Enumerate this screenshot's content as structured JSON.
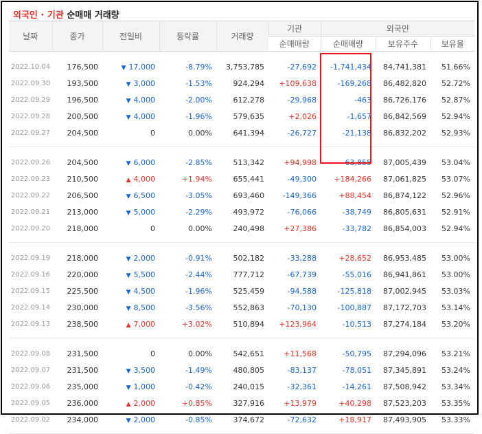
{
  "title": {
    "part1": "외국인 · 기관",
    "part2": " 순매매 거래량"
  },
  "headers": {
    "date": "날짜",
    "close": "종가",
    "change": "전일비",
    "rate": "등락률",
    "volume": "거래량",
    "inst": "기관",
    "inst_net": "순매매량",
    "foreign": "외국인",
    "foreign_net": "순매매량",
    "foreign_hold": "보유주수",
    "foreign_ratio": "보유율"
  },
  "colors": {
    "up": "#e0312a",
    "down": "#1a64c8",
    "highlight": "#e8161c"
  },
  "groups": [
    [
      {
        "date": "2022.10.04",
        "close": "176,500",
        "dir": "down",
        "change": "17,000",
        "rate": "-8.79%",
        "volume": "3,753,785",
        "inst": "-27,692",
        "foreign": "-1,741,434",
        "hold": "84,741,381",
        "ratio": "51.66%"
      },
      {
        "date": "2022.09.30",
        "close": "193,500",
        "dir": "down",
        "change": "3,000",
        "rate": "-1.53%",
        "volume": "924,294",
        "inst": "+109,638",
        "foreign": "-169,268",
        "hold": "86,482,820",
        "ratio": "52.72%"
      },
      {
        "date": "2022.09.29",
        "close": "196,500",
        "dir": "down",
        "change": "4,000",
        "rate": "-2.00%",
        "volume": "612,278",
        "inst": "-29,968",
        "foreign": "-463",
        "hold": "86,726,176",
        "ratio": "52.87%"
      },
      {
        "date": "2022.09.28",
        "close": "200,500",
        "dir": "down",
        "change": "4,000",
        "rate": "-1.96%",
        "volume": "579,635",
        "inst": "+2,026",
        "foreign": "-1,657",
        "hold": "86,842,569",
        "ratio": "52.94%"
      },
      {
        "date": "2022.09.27",
        "close": "204,500",
        "dir": "none",
        "change": "0",
        "rate": "0.00%",
        "volume": "641,394",
        "inst": "-26,727",
        "foreign": "-21,138",
        "hold": "86,832,202",
        "ratio": "52.93%"
      }
    ],
    [
      {
        "date": "2022.09.26",
        "close": "204,500",
        "dir": "down",
        "change": "6,000",
        "rate": "-2.85%",
        "volume": "513,342",
        "inst": "+94,998",
        "foreign": "-63,855",
        "hold": "87,005,439",
        "ratio": "53.04%"
      },
      {
        "date": "2022.09.23",
        "close": "210,500",
        "dir": "up",
        "change": "4,000",
        "rate": "+1.94%",
        "volume": "655,441",
        "inst": "-49,300",
        "foreign": "+184,266",
        "hold": "87,061,825",
        "ratio": "53.07%"
      },
      {
        "date": "2022.09.22",
        "close": "206,500",
        "dir": "down",
        "change": "6,500",
        "rate": "-3.05%",
        "volume": "693,460",
        "inst": "-149,366",
        "foreign": "+88,454",
        "hold": "86,874,122",
        "ratio": "52.96%"
      },
      {
        "date": "2022.09.21",
        "close": "213,000",
        "dir": "down",
        "change": "5,000",
        "rate": "-2.29%",
        "volume": "493,972",
        "inst": "-76,066",
        "foreign": "-38,749",
        "hold": "86,805,631",
        "ratio": "52.91%"
      },
      {
        "date": "2022.09.20",
        "close": "218,000",
        "dir": "none",
        "change": "0",
        "rate": "0.00%",
        "volume": "240,498",
        "inst": "+27,386",
        "foreign": "-33,782",
        "hold": "86,854,003",
        "ratio": "52.94%"
      }
    ],
    [
      {
        "date": "2022.09.19",
        "close": "218,000",
        "dir": "down",
        "change": "2,000",
        "rate": "-0.91%",
        "volume": "502,182",
        "inst": "-33,288",
        "foreign": "+28,652",
        "hold": "86,953,485",
        "ratio": "53.00%"
      },
      {
        "date": "2022.09.16",
        "close": "220,000",
        "dir": "down",
        "change": "5,500",
        "rate": "-2.44%",
        "volume": "777,712",
        "inst": "-67,739",
        "foreign": "-55,016",
        "hold": "86,941,861",
        "ratio": "53.00%"
      },
      {
        "date": "2022.09.15",
        "close": "225,500",
        "dir": "down",
        "change": "4,500",
        "rate": "-1.96%",
        "volume": "525,459",
        "inst": "-94,588",
        "foreign": "-125,818",
        "hold": "87,002,945",
        "ratio": "53.03%"
      },
      {
        "date": "2022.09.14",
        "close": "230,000",
        "dir": "down",
        "change": "8,500",
        "rate": "-3.56%",
        "volume": "552,863",
        "inst": "-70,130",
        "foreign": "-100,887",
        "hold": "87,172,703",
        "ratio": "53.14%"
      },
      {
        "date": "2022.09.13",
        "close": "238,500",
        "dir": "up",
        "change": "7,000",
        "rate": "+3.02%",
        "volume": "510,894",
        "inst": "+123,964",
        "foreign": "-10,513",
        "hold": "87,274,184",
        "ratio": "53.20%"
      }
    ],
    [
      {
        "date": "2022.09.08",
        "close": "231,500",
        "dir": "none",
        "change": "0",
        "rate": "0.00%",
        "volume": "542,651",
        "inst": "+11,568",
        "foreign": "-50,795",
        "hold": "87,294,096",
        "ratio": "53.21%"
      },
      {
        "date": "2022.09.07",
        "close": "231,500",
        "dir": "down",
        "change": "3,500",
        "rate": "-1.49%",
        "volume": "480,805",
        "inst": "-83,137",
        "foreign": "-78,051",
        "hold": "87,345,891",
        "ratio": "53.24%"
      },
      {
        "date": "2022.09.06",
        "close": "235,000",
        "dir": "down",
        "change": "1,000",
        "rate": "-0.42%",
        "volume": "240,015",
        "inst": "-32,361",
        "foreign": "-14,261",
        "hold": "87,508,942",
        "ratio": "53.34%"
      },
      {
        "date": "2022.09.05",
        "close": "236,000",
        "dir": "up",
        "change": "2,000",
        "rate": "+0.85%",
        "volume": "327,916",
        "inst": "+13,979",
        "foreign": "+40,298",
        "hold": "87,523,203",
        "ratio": "53.35%"
      },
      {
        "date": "2022.09.02",
        "close": "234,000",
        "dir": "down",
        "change": "2,000",
        "rate": "-0.85%",
        "volume": "374,672",
        "inst": "-72,632",
        "foreign": "+18,917",
        "hold": "87,493,905",
        "ratio": "53.33%"
      }
    ]
  ]
}
